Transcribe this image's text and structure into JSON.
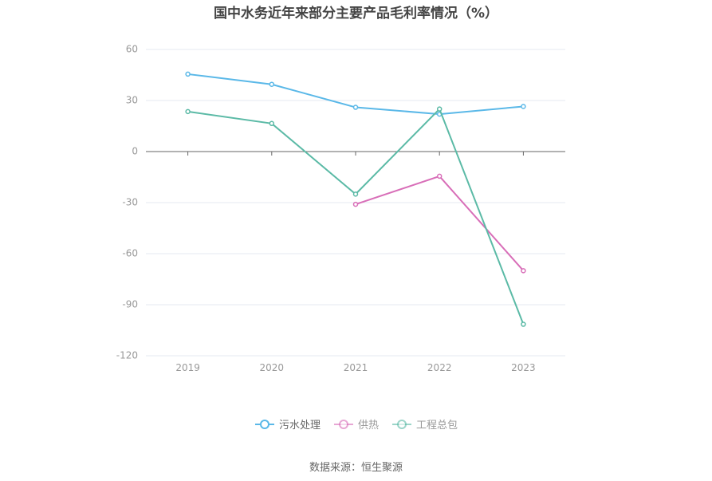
{
  "chart_data": {
    "type": "line",
    "title": "国中水务近年来部分主要产品毛利率情况（%）",
    "categories": [
      "2019",
      "2020",
      "2021",
      "2022",
      "2023"
    ],
    "ylim": [
      -120,
      60
    ],
    "yticks": [
      60,
      30,
      0,
      -30,
      -60,
      -90,
      -120
    ],
    "grid": true,
    "legend_position": "bottom",
    "series": [
      {
        "name": "污水处理",
        "color": "#5ab8e8",
        "values": [
          45.5,
          39.5,
          26,
          22,
          26.5
        ]
      },
      {
        "name": "供热",
        "color": "#d86eb8",
        "values": [
          null,
          null,
          -31,
          -14.5,
          -70
        ]
      },
      {
        "name": "工程总包",
        "color": "#5bbaa6",
        "values": [
          23.5,
          16.5,
          -25,
          25,
          -101.5
        ]
      }
    ]
  },
  "source": "数据来源：恒生聚源"
}
